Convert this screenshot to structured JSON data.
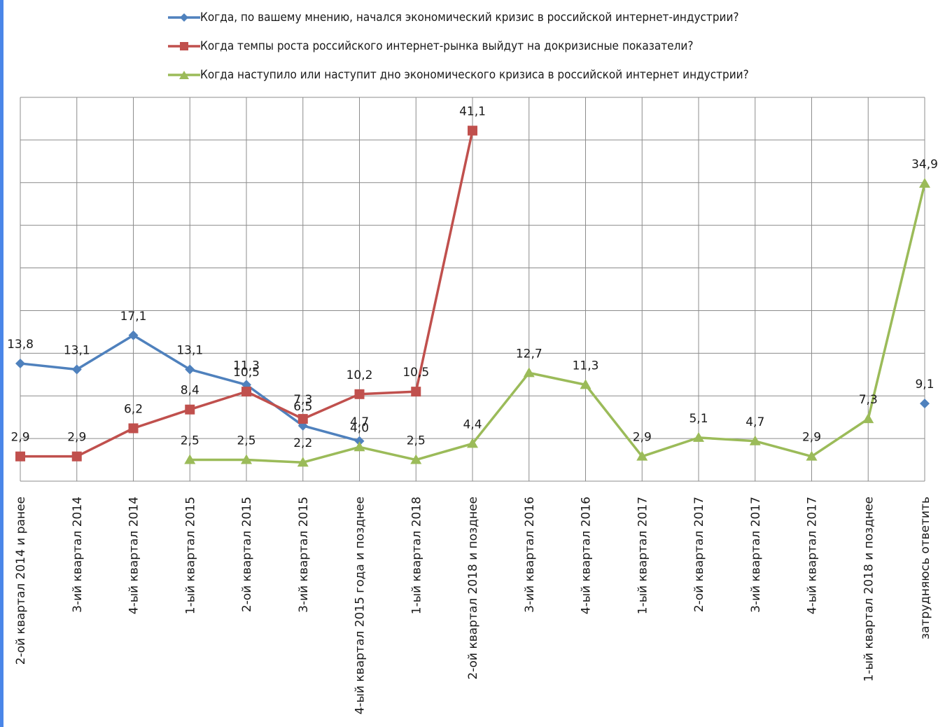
{
  "chart_data": {
    "type": "line",
    "title": "",
    "xlabel": "",
    "ylabel": "",
    "ylim": [
      0,
      45
    ],
    "grid": true,
    "legend_position": "top",
    "categories": [
      "2-ой квартал 2014 и ранее",
      "3-ий квартал 2014",
      "4-ый квартал 2014",
      "1-ый квартал 2015",
      "2-ой квартал 2015",
      "3-ий квартал 2015",
      "4-ый квартал 2015 года и позднее",
      "1-ый квартал 2018",
      "2-ой квартал 2018 и позднее",
      "3-ий квартал 2016",
      "4-ый квартал 2016",
      "1-ый квартал 2017",
      "2-ой квартал 2017",
      "3-ий квартал 2017",
      "4-ый квартал 2017",
      "1-ый квартал 2018 и позднее",
      "затрудняюсь ответить"
    ],
    "series": [
      {
        "name": "Когда, по вашему мнению, начался экономический кризис в российской интернет-индустрии?",
        "color": "#4f81bd",
        "marker": "diamond",
        "values": [
          13.8,
          13.1,
          17.1,
          13.1,
          11.3,
          6.5,
          4.7,
          null,
          null,
          null,
          null,
          null,
          null,
          null,
          null,
          null,
          9.1
        ],
        "labels": [
          "13,8",
          "13,1",
          "17,1",
          "13,1",
          "11,3",
          "6,5",
          "4,7",
          null,
          null,
          null,
          null,
          null,
          null,
          null,
          null,
          null,
          "9,1"
        ]
      },
      {
        "name": "Когда темпы роста российского интернет-рынка выйдут на докризисные показатели?",
        "color": "#c0504d",
        "marker": "square",
        "values": [
          2.9,
          2.9,
          6.2,
          8.4,
          10.5,
          7.3,
          10.2,
          10.5,
          41.1,
          null,
          null,
          null,
          null,
          null,
          null,
          null,
          null
        ],
        "labels": [
          "2,9",
          "2,9",
          "6,2",
          "8,4",
          "10,5",
          "7,3",
          "10,2",
          "10,5",
          "41,1",
          null,
          null,
          null,
          null,
          null,
          null,
          null,
          null
        ]
      },
      {
        "name": "Когда наступило или наступит дно экономического кризиса в российской интернет индустрии?",
        "color": "#9bbb59",
        "marker": "triangle",
        "values": [
          null,
          null,
          null,
          2.5,
          2.5,
          2.2,
          4.0,
          2.5,
          4.4,
          12.7,
          11.3,
          2.9,
          5.1,
          4.7,
          2.9,
          7.3,
          34.9
        ],
        "labels": [
          null,
          null,
          null,
          "2,5",
          "2,5",
          "2,2",
          "4,0",
          "2,5",
          "4,4",
          "12,7",
          "11,3",
          "2,9",
          "5,1",
          "4,7",
          "2,9",
          "7,3",
          "34,9"
        ]
      }
    ]
  }
}
